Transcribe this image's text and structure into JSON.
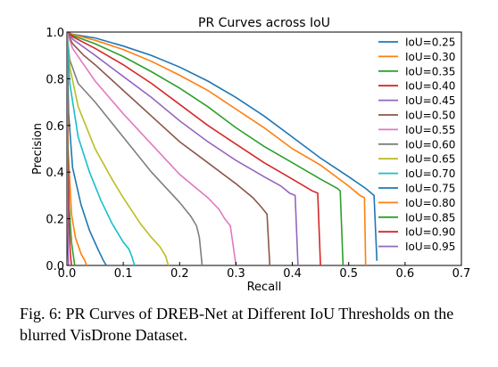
{
  "chart_data": {
    "type": "line",
    "title": "PR Curves across IoU",
    "xlabel": "Recall",
    "ylabel": "Precision",
    "xlim": [
      0,
      0.7
    ],
    "ylim": [
      0,
      1.0
    ],
    "xticks": [
      0,
      0.1,
      0.2,
      0.3,
      0.4,
      0.5,
      0.6,
      0.7
    ],
    "xtick_labels": [
      "0.0",
      "0.1",
      "0.2",
      "0.3",
      "0.4",
      "0.5",
      "0.6",
      "0.7"
    ],
    "yticks": [
      0,
      0.2,
      0.4,
      0.6,
      0.8,
      1.0
    ],
    "ytick_labels": [
      "0.0",
      "0.2",
      "0.4",
      "0.6",
      "0.8",
      "1.0"
    ],
    "grid": false,
    "legend_position": "right",
    "series": [
      {
        "name": "IoU=0.25",
        "color": "#1f77b4",
        "x": [
          0.0,
          0.01,
          0.05,
          0.1,
          0.15,
          0.2,
          0.25,
          0.3,
          0.35,
          0.4,
          0.45,
          0.5,
          0.53,
          0.545,
          0.55
        ],
        "y": [
          1.0,
          0.99,
          0.975,
          0.94,
          0.9,
          0.85,
          0.79,
          0.72,
          0.64,
          0.55,
          0.46,
          0.38,
          0.33,
          0.3,
          0.02
        ]
      },
      {
        "name": "IoU=0.30",
        "color": "#ff7f0e",
        "x": [
          0.0,
          0.01,
          0.05,
          0.1,
          0.15,
          0.2,
          0.25,
          0.3,
          0.35,
          0.4,
          0.45,
          0.5,
          0.52,
          0.528,
          0.53
        ],
        "y": [
          1.0,
          0.99,
          0.965,
          0.925,
          0.875,
          0.815,
          0.75,
          0.67,
          0.59,
          0.5,
          0.43,
          0.34,
          0.3,
          0.29,
          0.0
        ]
      },
      {
        "name": "IoU=0.35",
        "color": "#2ca02c",
        "x": [
          0.0,
          0.01,
          0.05,
          0.1,
          0.15,
          0.2,
          0.25,
          0.3,
          0.35,
          0.4,
          0.45,
          0.48,
          0.485,
          0.49
        ],
        "y": [
          1.0,
          0.985,
          0.95,
          0.895,
          0.83,
          0.76,
          0.68,
          0.59,
          0.51,
          0.44,
          0.37,
          0.33,
          0.32,
          0.0
        ]
      },
      {
        "name": "IoU=0.40",
        "color": "#d62728",
        "x": [
          0.0,
          0.01,
          0.05,
          0.1,
          0.15,
          0.2,
          0.25,
          0.3,
          0.35,
          0.4,
          0.435,
          0.445,
          0.45
        ],
        "y": [
          1.0,
          0.98,
          0.93,
          0.86,
          0.78,
          0.69,
          0.6,
          0.52,
          0.44,
          0.37,
          0.32,
          0.31,
          0.0
        ]
      },
      {
        "name": "IoU=0.45",
        "color": "#9467bd",
        "x": [
          0.0,
          0.01,
          0.05,
          0.1,
          0.15,
          0.2,
          0.25,
          0.3,
          0.35,
          0.38,
          0.395,
          0.405,
          0.41
        ],
        "y": [
          1.0,
          0.97,
          0.9,
          0.81,
          0.72,
          0.62,
          0.53,
          0.45,
          0.38,
          0.34,
          0.31,
          0.3,
          0.0
        ]
      },
      {
        "name": "IoU=0.50",
        "color": "#8c564b",
        "x": [
          0.0,
          0.01,
          0.03,
          0.05,
          0.1,
          0.15,
          0.2,
          0.25,
          0.3,
          0.33,
          0.345,
          0.355,
          0.36
        ],
        "y": [
          1.0,
          0.95,
          0.9,
          0.86,
          0.75,
          0.64,
          0.53,
          0.44,
          0.35,
          0.29,
          0.25,
          0.22,
          0.0
        ]
      },
      {
        "name": "IoU=0.55",
        "color": "#e377c2",
        "x": [
          0.0,
          0.01,
          0.03,
          0.05,
          0.1,
          0.15,
          0.2,
          0.25,
          0.27,
          0.28,
          0.29,
          0.3
        ],
        "y": [
          1.0,
          0.93,
          0.86,
          0.79,
          0.65,
          0.52,
          0.39,
          0.29,
          0.24,
          0.2,
          0.17,
          0.0
        ]
      },
      {
        "name": "IoU=0.60",
        "color": "#7f7f7f",
        "x": [
          0.0,
          0.005,
          0.02,
          0.05,
          0.1,
          0.15,
          0.2,
          0.22,
          0.23,
          0.235,
          0.24
        ],
        "y": [
          1.0,
          0.88,
          0.78,
          0.7,
          0.55,
          0.4,
          0.27,
          0.21,
          0.17,
          0.12,
          0.0
        ]
      },
      {
        "name": "IoU=0.65",
        "color": "#bcbd22",
        "x": [
          0.0,
          0.005,
          0.02,
          0.05,
          0.08,
          0.1,
          0.13,
          0.15,
          0.165,
          0.175,
          0.18
        ],
        "y": [
          1.0,
          0.85,
          0.68,
          0.5,
          0.37,
          0.29,
          0.18,
          0.12,
          0.08,
          0.04,
          0.0
        ]
      },
      {
        "name": "IoU=0.70",
        "color": "#17becf",
        "x": [
          0.0,
          0.005,
          0.02,
          0.04,
          0.06,
          0.08,
          0.1,
          0.11,
          0.115,
          0.12
        ],
        "y": [
          1.0,
          0.78,
          0.55,
          0.4,
          0.28,
          0.18,
          0.1,
          0.07,
          0.04,
          0.0
        ]
      },
      {
        "name": "IoU=0.75",
        "color": "#1f77b4",
        "x": [
          0.0,
          0.003,
          0.01,
          0.025,
          0.04,
          0.055,
          0.065,
          0.07
        ],
        "y": [
          1.0,
          0.65,
          0.42,
          0.26,
          0.15,
          0.07,
          0.02,
          0.0
        ]
      },
      {
        "name": "IoU=0.80",
        "color": "#ff7f0e",
        "x": [
          0.0,
          0.002,
          0.008,
          0.015,
          0.025,
          0.032,
          0.035
        ],
        "y": [
          1.0,
          0.5,
          0.22,
          0.12,
          0.05,
          0.02,
          0.0
        ]
      },
      {
        "name": "IoU=0.85",
        "color": "#2ca02c",
        "x": [
          0.0,
          0.001,
          0.004,
          0.008,
          0.012,
          0.014
        ],
        "y": [
          1.0,
          0.6,
          0.25,
          0.1,
          0.03,
          0.0
        ]
      },
      {
        "name": "IoU=0.90",
        "color": "#d62728",
        "x": [
          0.0,
          0.001,
          0.003,
          0.006,
          0.008
        ],
        "y": [
          1.0,
          0.5,
          0.2,
          0.05,
          0.0
        ]
      },
      {
        "name": "IoU=0.95",
        "color": "#9467bd",
        "x": [
          0.0,
          0.001,
          0.002,
          0.003
        ],
        "y": [
          1.0,
          0.3,
          0.05,
          0.0
        ]
      }
    ]
  },
  "caption": {
    "text": "Fig. 6: PR Curves of DREB-Net at Different IoU Thresholds on the blurred VisDrone Dataset."
  }
}
